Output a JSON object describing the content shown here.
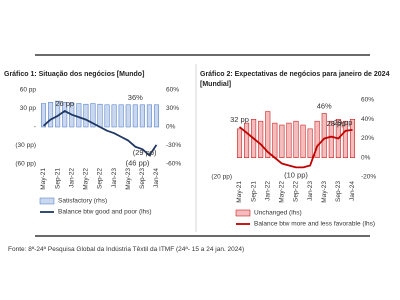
{
  "chart_data": [
    {
      "type": "combo",
      "title": "Gráfico 1: Situação dos negócios [Mundo]",
      "categories": [
        "May-21",
        null,
        "Sep-21",
        null,
        "Jan-22",
        null,
        "May-22",
        null,
        "Sep-22",
        null,
        "Jan-23",
        null,
        "May-23",
        null,
        "Sep-23",
        null,
        "Jan-24"
      ],
      "ylim": [
        -60,
        60
      ],
      "yticks": [
        {
          "value": 60,
          "label": "60 pp"
        },
        {
          "value": 30,
          "label": "30 pp"
        },
        {
          "value": 0,
          "label": "-"
        },
        {
          "value": -30,
          "label": "(30 pp)"
        },
        {
          "value": -60,
          "label": "(60 pp)"
        }
      ],
      "y2lim": [
        -60,
        60
      ],
      "y2ticks": [
        {
          "value": 60,
          "label": "60%"
        },
        {
          "value": 30,
          "label": "30%"
        },
        {
          "value": 0,
          "label": "0%"
        },
        {
          "value": -30,
          "label": "-30%"
        },
        {
          "value": -60,
          "label": "-60%"
        }
      ],
      "series": [
        {
          "name": "Satisfactory (rhs)",
          "kind": "bar",
          "axis": "y2",
          "color": "#c9d8ee",
          "edge": "#4472c4",
          "label_color": "#4a90d9",
          "values": [
            38,
            40,
            42,
            40,
            39,
            38,
            37,
            38,
            37,
            36,
            36,
            36,
            36,
            36,
            36,
            36,
            36
          ],
          "value_labels": [
            null,
            null,
            null,
            null,
            null,
            null,
            null,
            null,
            null,
            null,
            null,
            null,
            null,
            "36%",
            null,
            null,
            null
          ]
        },
        {
          "name": "Balance btw good and poor (lhs)",
          "kind": "line",
          "color": "#1f3864",
          "label_color": "#2e75b6",
          "values": [
            2,
            12,
            18,
            26,
            20,
            16,
            12,
            6,
            0,
            -6,
            -10,
            -16,
            -22,
            -32,
            -36,
            -46,
            -29
          ],
          "value_labels": [
            null,
            null,
            null,
            "26 pp",
            null,
            null,
            null,
            null,
            null,
            null,
            null,
            null,
            null,
            null,
            null,
            "(46 pp)",
            "(29 pp)"
          ]
        }
      ]
    },
    {
      "type": "combo",
      "title": "Gráfico 2: Expectativas de negócios para janeiro de 2024 [Mundial]",
      "categories": [
        "May-21",
        null,
        "Sep-21",
        null,
        "Jan-22",
        null,
        "May-22",
        null,
        "Sep-22",
        null,
        "Jan-23",
        null,
        "May-23",
        null,
        "Sep-23",
        null,
        "Jan-24"
      ],
      "ylim": [
        -20,
        60
      ],
      "yticks": [
        {
          "value": -20,
          "label": "(20 pp)"
        }
      ],
      "y2lim": [
        -20,
        60
      ],
      "y2ticks": [
        {
          "value": 60,
          "label": "60%"
        },
        {
          "value": 40,
          "label": "40%"
        },
        {
          "value": 20,
          "label": "20%"
        },
        {
          "value": 0,
          "label": "0%"
        },
        {
          "value": -20,
          "label": "-20%"
        }
      ],
      "series": [
        {
          "name": "Unchanged (lhs)",
          "kind": "bar",
          "color": "#f4bcbc",
          "edge": "#c00000",
          "label_color": "#c00000",
          "values": [
            30,
            36,
            40,
            38,
            48,
            36,
            34,
            36,
            38,
            34,
            30,
            38,
            46,
            38,
            40,
            38,
            40
          ],
          "value_labels": [
            null,
            null,
            null,
            null,
            null,
            null,
            null,
            null,
            null,
            null,
            null,
            null,
            "46%",
            null,
            null,
            null,
            null
          ]
        },
        {
          "name": "Balance btw more and less favorable (lhs)",
          "kind": "line",
          "color": "#c00000",
          "label_color": "#c00000",
          "values": [
            32,
            26,
            20,
            14,
            6,
            0,
            -6,
            -8,
            -10,
            -10,
            -8,
            12,
            20,
            22,
            20,
            28,
            29
          ],
          "value_labels": [
            "32 pp",
            null,
            null,
            null,
            null,
            null,
            null,
            null,
            "(10 pp)",
            null,
            null,
            null,
            null,
            null,
            null,
            "28 pp",
            "29 pp"
          ]
        }
      ]
    }
  ],
  "source": "Fonte: 8ª-24ª Pesquisa Global da Indústria Têxtil da ITMF (24ª- 15 a 24 jan. 2024)"
}
